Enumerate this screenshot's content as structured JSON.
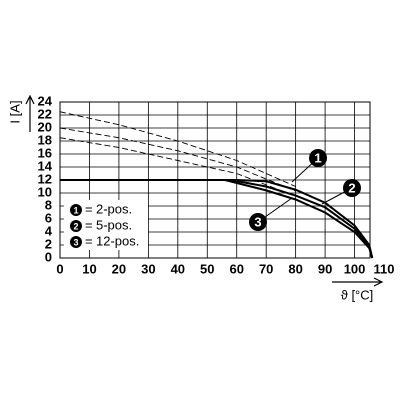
{
  "chart_data": {
    "type": "line",
    "x_label": "ϑ [°C]",
    "y_label": "I [A]",
    "xlim": [
      0,
      110
    ],
    "xticks": [
      0,
      10,
      20,
      30,
      40,
      50,
      60,
      70,
      80,
      90,
      100,
      110
    ],
    "ylim": [
      0,
      24
    ],
    "yticks": [
      0,
      2,
      4,
      6,
      8,
      10,
      12,
      14,
      16,
      18,
      20,
      22,
      24
    ],
    "grid": true,
    "legend_position": "lower left",
    "legend_separator": "=",
    "series": [
      {
        "name": "2-pos.",
        "badge": "1",
        "color": "#000000",
        "x": [
          0,
          60,
          70,
          80,
          90,
          100,
          105,
          106
        ],
        "values": [
          12,
          12,
          11.8,
          10.5,
          8.5,
          5,
          2,
          0
        ],
        "dashed_x": [
          0,
          20,
          40,
          60,
          80
        ],
        "dashed_values": [
          22.5,
          20.5,
          18,
          15,
          11
        ]
      },
      {
        "name": "5-pos.",
        "badge": "2",
        "color": "#000000",
        "x": [
          0,
          58,
          70,
          80,
          90,
          100,
          105,
          106
        ],
        "values": [
          12,
          12,
          11,
          9.6,
          7.8,
          4.5,
          1.8,
          0
        ],
        "dashed_x": [
          0,
          20,
          40,
          60,
          80
        ],
        "dashed_values": [
          20,
          18.5,
          16.5,
          14,
          10.3
        ]
      },
      {
        "name": "12-pos.",
        "badge": "3",
        "color": "#000000",
        "x": [
          0,
          56,
          70,
          80,
          90,
          100,
          105,
          106
        ],
        "values": [
          12,
          12,
          10.4,
          9,
          7,
          4,
          1.5,
          0
        ],
        "dashed_x": [
          0,
          20,
          40,
          60,
          80
        ],
        "dashed_values": [
          18.5,
          17,
          15,
          13,
          9.5
        ]
      }
    ]
  }
}
